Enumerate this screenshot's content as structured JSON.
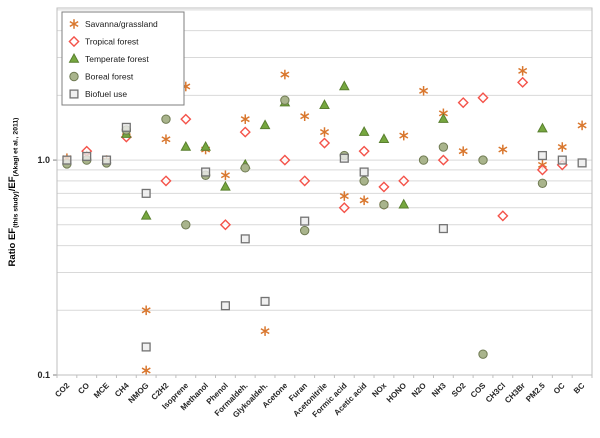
{
  "chart_data": {
    "type": "scatter",
    "title": "",
    "y_axis": {
      "scale": "log",
      "lim": [
        0.1,
        5.1
      ],
      "ticks": [
        {
          "v": 0.1,
          "label": "0.1"
        },
        {
          "v": 1.0,
          "label": "1.0"
        }
      ],
      "gridlines": [
        0.2,
        0.3,
        0.4,
        0.5,
        0.6,
        0.7,
        0.8,
        0.9,
        1,
        2,
        3,
        4,
        5
      ],
      "label_parts": [
        {
          "text": "Ratio EF",
          "sub": false
        },
        {
          "text": "(this study)",
          "sub": true
        },
        {
          "text": "/EF",
          "sub": false
        },
        {
          "text": "(Akagi et al., 2011)",
          "sub": true
        }
      ]
    },
    "categories": [
      "CO2",
      "CO",
      "MCE",
      "CH4",
      "NMOG",
      "C2H2",
      "Isoprene",
      "Methanol",
      "Phenol",
      "Formaldeh.",
      "Glykoaldeh.",
      "Acetone",
      "Furan",
      "Acetonitrile",
      "Formic acid",
      "Acetic acid",
      "NOx",
      "HONO",
      "N2O",
      "NH3",
      "SO2",
      "COS",
      "CH3Cl",
      "CH3Br",
      "PM2.5",
      "OC",
      "BC"
    ],
    "legend": {
      "position": "top-left",
      "border_color": "#7f7f7f",
      "background": "#ffffff"
    },
    "series": [
      {
        "name": "Savanna/grassland",
        "marker": "asterisk",
        "stroke": "#d9772e",
        "fill": "none",
        "values": [
          1.02,
          1.05,
          1.0,
          1.35,
          [
            0.2,
            0.105
          ],
          1.25,
          2.2,
          1.12,
          0.85,
          1.55,
          0.16,
          2.5,
          1.6,
          1.35,
          0.68,
          0.65,
          0.62,
          1.3,
          2.1,
          1.65,
          1.1,
          null,
          1.12,
          2.6,
          0.95,
          1.15,
          1.45
        ]
      },
      {
        "name": "Tropical forest",
        "marker": "diamond",
        "stroke": "#f4534a",
        "fill": "#ffffff",
        "values": [
          null,
          1.1,
          null,
          1.28,
          null,
          0.8,
          1.55,
          null,
          0.5,
          1.35,
          null,
          1.0,
          0.8,
          1.2,
          0.6,
          1.1,
          0.75,
          0.8,
          null,
          1.0,
          1.85,
          1.95,
          0.55,
          2.3,
          0.9,
          0.95,
          null
        ]
      },
      {
        "name": "Temperate forest",
        "marker": "triangle",
        "stroke": "#597f2f",
        "fill": "#76a73f",
        "values": [
          null,
          null,
          null,
          1.32,
          0.55,
          null,
          1.15,
          1.15,
          0.75,
          0.95,
          1.45,
          1.85,
          null,
          1.8,
          2.2,
          1.35,
          1.25,
          0.62,
          null,
          1.55,
          null,
          null,
          null,
          null,
          1.4,
          null,
          null
        ]
      },
      {
        "name": "Boreal forest",
        "marker": "circle",
        "stroke": "#6f7a52",
        "fill": "#a9b48c",
        "values": [
          0.96,
          1.0,
          0.97,
          1.38,
          null,
          1.55,
          0.5,
          0.85,
          null,
          0.92,
          null,
          1.9,
          0.47,
          null,
          1.05,
          0.8,
          0.62,
          null,
          1.0,
          1.15,
          null,
          [
            1.0,
            0.125
          ],
          null,
          null,
          0.78,
          null,
          null
        ]
      },
      {
        "name": "Biofuel use",
        "marker": "square",
        "stroke": "#737373",
        "fill": "#ececec",
        "values": [
          1.0,
          1.04,
          1.0,
          1.42,
          [
            0.7,
            0.135
          ],
          null,
          null,
          0.88,
          0.21,
          0.43,
          0.22,
          null,
          0.52,
          null,
          1.02,
          0.88,
          null,
          null,
          null,
          0.48,
          null,
          null,
          null,
          null,
          1.05,
          1.0,
          0.97
        ]
      }
    ]
  }
}
